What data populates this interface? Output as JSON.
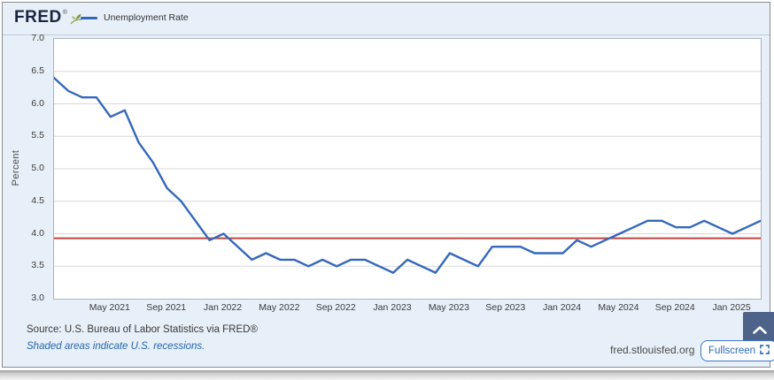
{
  "header": {
    "logo_text": "FRED",
    "reg_mark": "®",
    "legend": {
      "label": "Unemployment Rate",
      "line_color": "#3568bb"
    }
  },
  "chart_data": {
    "type": "line",
    "title": "",
    "xlabel": "",
    "ylabel": "Percent",
    "ylim": [
      3.0,
      7.0
    ],
    "grid": "horizontal",
    "legend_position": "top-left",
    "x_range": {
      "start": "Jan 2021",
      "end": "Mar 2025",
      "frequency": "monthly"
    },
    "y_ticks": [
      "7.0",
      "6.5",
      "6.0",
      "5.5",
      "5.0",
      "4.5",
      "4.0",
      "3.5",
      "3.0"
    ],
    "x_tick_labels": [
      "May 2021",
      "Sep 2021",
      "Jan 2022",
      "May 2022",
      "Sep 2022",
      "Jan 2023",
      "May 2023",
      "Sep 2023",
      "Jan 2024",
      "May 2024",
      "Sep 2024",
      "Jan 2025"
    ],
    "x_tick_month_indices": [
      4,
      8,
      12,
      16,
      20,
      24,
      28,
      32,
      36,
      40,
      44,
      48
    ],
    "series": [
      {
        "name": "Unemployment Rate",
        "color": "#3568bb",
        "values": [
          6.4,
          6.2,
          6.1,
          6.1,
          5.8,
          5.9,
          5.4,
          5.1,
          4.7,
          4.5,
          4.2,
          3.9,
          4.0,
          3.8,
          3.6,
          3.7,
          3.6,
          3.6,
          3.5,
          3.6,
          3.5,
          3.6,
          3.6,
          3.5,
          3.4,
          3.6,
          3.5,
          3.4,
          3.7,
          3.6,
          3.5,
          3.8,
          3.8,
          3.8,
          3.7,
          3.7,
          3.7,
          3.9,
          3.8,
          3.9,
          4.0,
          4.1,
          4.2,
          4.2,
          4.1,
          4.1,
          4.2,
          4.1,
          4.0,
          4.1,
          4.2
        ]
      }
    ],
    "reference_line": {
      "orientation": "horizontal",
      "value": 3.93,
      "color": "#bf4440"
    }
  },
  "footer": {
    "source_line": "Source: U.S. Bureau of Labor Statistics via FRED®",
    "recession_note": "Shaded areas indicate U.S. recessions.",
    "site_url": "fred.stlouisfed.org",
    "fullscreen_label": "Fullscreen"
  },
  "icons": {
    "logo_icon": "fred-sprout-icon",
    "fullscreen_icon": "expand-corners-icon",
    "scroll_icon": "chevron-up-icon"
  },
  "colors": {
    "widget_background": "#e7eff8",
    "plot_background": "#ffffff",
    "gridline": "#d8d8d8",
    "series_line": "#3568bb",
    "reference_line": "#bf4440",
    "fullscreen_border": "#3f74c9",
    "scroll_button_background": "#4d6389"
  }
}
